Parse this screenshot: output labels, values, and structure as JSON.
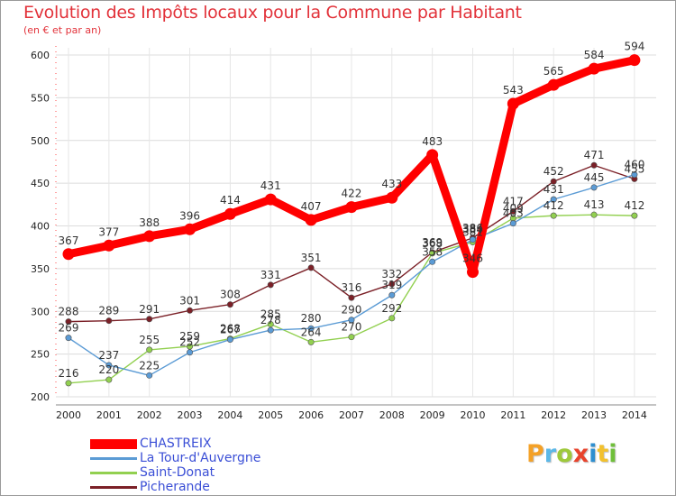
{
  "chart_data": {
    "type": "line",
    "title": "Evolution des Impôts locaux pour la Commune par Habitant",
    "subtitle": "(en € et par an)",
    "xlabel": "",
    "ylabel": "",
    "ylim": [
      200,
      600
    ],
    "yticks": [
      200,
      250,
      300,
      350,
      400,
      450,
      500,
      550,
      600
    ],
    "categories": [
      "2000",
      "2001",
      "2002",
      "2003",
      "2004",
      "2005",
      "2006",
      "2007",
      "2008",
      "2009",
      "2010",
      "2011",
      "2012",
      "2013",
      "2014"
    ],
    "grid": true,
    "legend_position": "bottom-left",
    "series": [
      {
        "name": "CHASTREIX",
        "color": "#ff0000",
        "values": [
          367,
          377,
          388,
          396,
          414,
          431,
          407,
          422,
          433,
          483,
          346,
          543,
          565,
          584,
          594
        ],
        "labels": [
          "367",
          "377",
          "388",
          "396",
          "414",
          "431",
          "407",
          "422",
          "433",
          "483",
          "346",
          "543",
          "565",
          "584",
          "594"
        ]
      },
      {
        "name": "La Tour-d'Auvergne",
        "color": "#5b9bd5",
        "values": [
          269,
          237,
          225,
          252,
          267,
          278,
          280,
          290,
          319,
          358,
          384,
          403,
          431,
          445,
          460
        ],
        "labels": [
          "269",
          "237",
          "225",
          "252",
          "267",
          "278",
          "280",
          "290",
          "319",
          "358",
          "384",
          "403",
          "431",
          "445",
          "460"
        ]
      },
      {
        "name": "Saint-Donat",
        "color": "#92d050",
        "values": [
          216,
          220,
          255,
          259,
          268,
          285,
          264,
          270,
          292,
          368,
          381,
          409,
          412,
          413,
          412
        ],
        "labels": [
          "216",
          "220",
          "255",
          "259",
          "268",
          "285",
          "264",
          "270",
          "292",
          "368",
          "381",
          "409",
          "412",
          "413",
          "412"
        ]
      },
      {
        "name": "Picherande",
        "color": "#7b2027",
        "values": [
          288,
          289,
          291,
          301,
          308,
          331,
          351,
          316,
          332,
          369,
          386,
          417,
          452,
          471,
          455
        ],
        "labels": [
          "288",
          "289",
          "291",
          "301",
          "308",
          "331",
          "351",
          "316",
          "332",
          "369",
          "386",
          "417",
          "452",
          "471",
          "455"
        ]
      }
    ]
  },
  "logo": {
    "text": "Proxiti",
    "colors": [
      "#f4a127",
      "#5bb8e8",
      "#9ec93b",
      "#e8432c",
      "#2e8fd0",
      "#f2c12e",
      "#6fbf3a"
    ]
  }
}
